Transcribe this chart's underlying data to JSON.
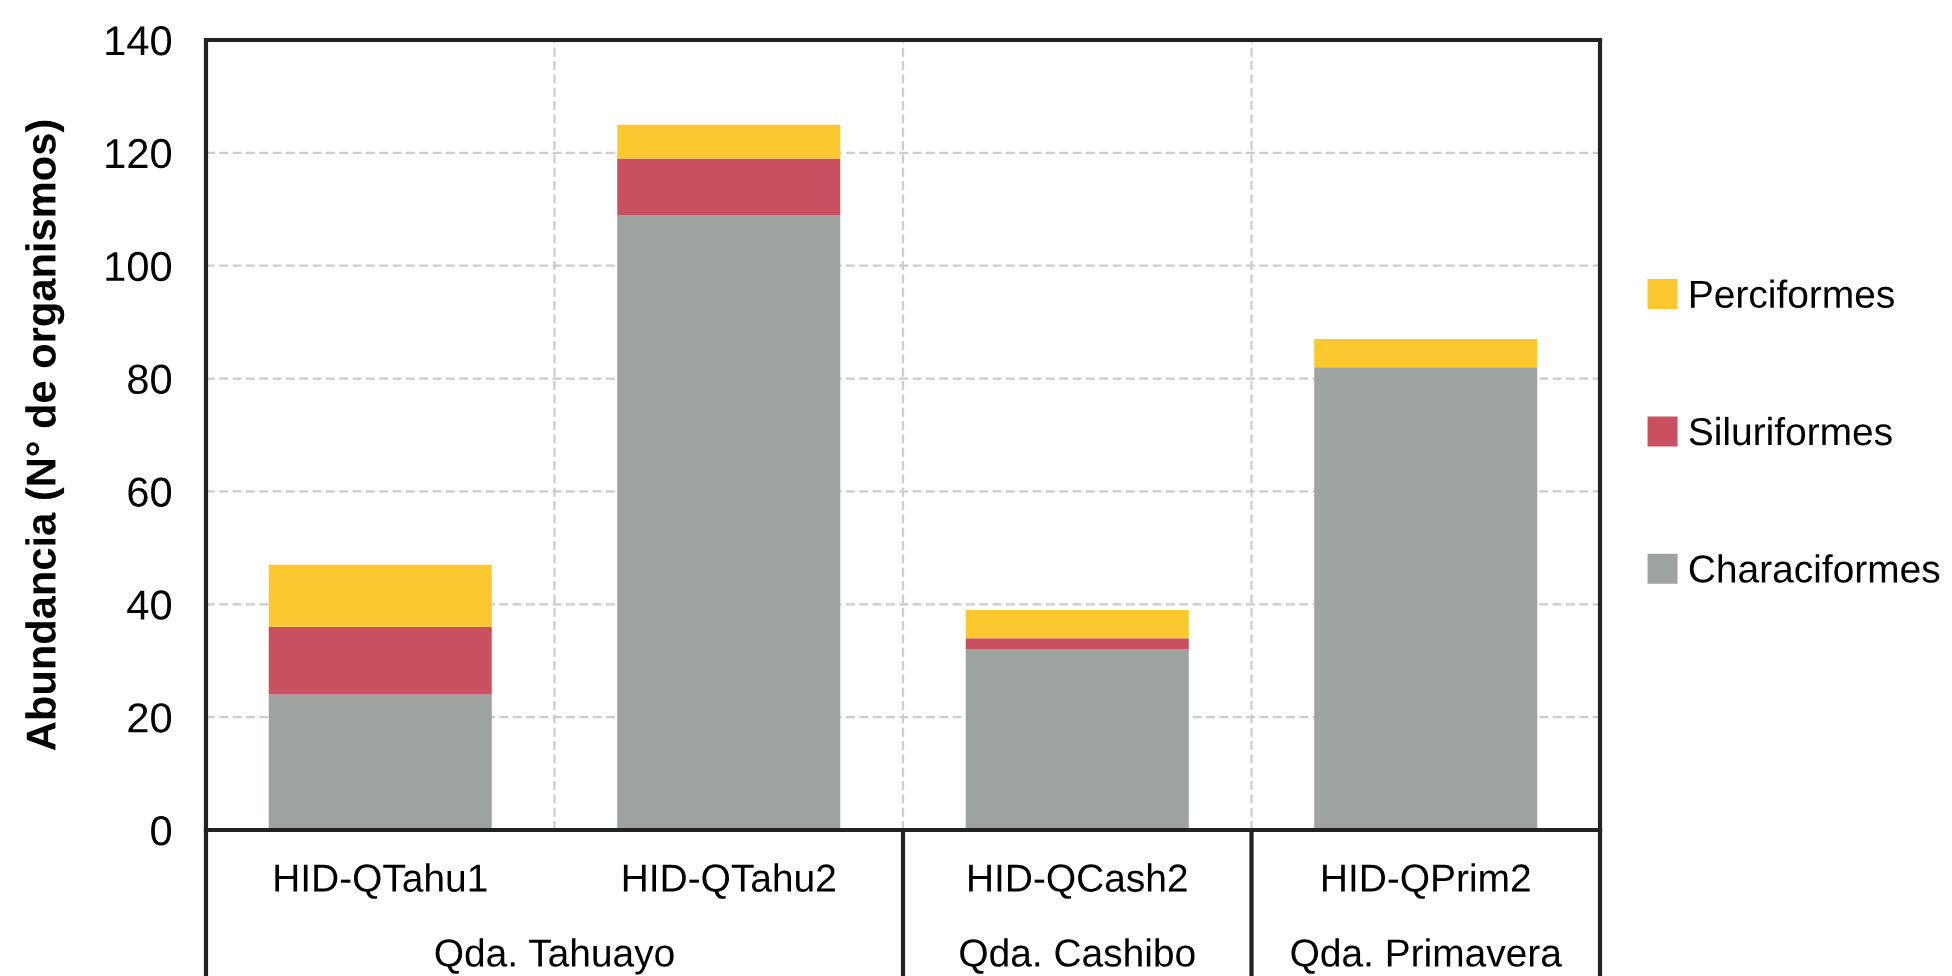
{
  "chart_data": {
    "type": "bar",
    "stacked": true,
    "ylabel": "Abundancia (N° de organismos)",
    "categories": [
      "HID-QTahu1",
      "HID-QTahu2",
      "HID-QCash2",
      "HID-QPrim2"
    ],
    "series": [
      {
        "name": "Characiformes",
        "color": "#9ea39f",
        "values": [
          24,
          109,
          32,
          82
        ]
      },
      {
        "name": "Siluriformes",
        "color": "#c8505f",
        "values": [
          12,
          10,
          2,
          0
        ]
      },
      {
        "name": "Perciformes",
        "color": "#fcc830",
        "values": [
          11,
          6,
          5,
          5
        ]
      }
    ],
    "annotations": [
      "Qda. Tahuayo",
      "Qda. Cashibo",
      "Qda. Primavera"
    ],
    "ylim": [
      0,
      140
    ],
    "yticks": [
      0,
      20,
      40,
      60,
      80,
      100,
      120,
      140
    ],
    "grid": true,
    "legend": "right"
  }
}
